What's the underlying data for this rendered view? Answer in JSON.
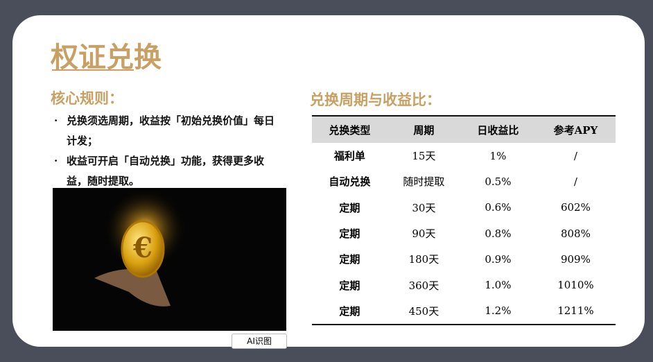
{
  "title": "权证兑换",
  "rules": {
    "heading": "核心规则：",
    "items": [
      "兑换须选周期，收益按「初始兑换价值」每日计发；",
      "收益可开启「自动兑换」功能，获得更多收益，随时提取。"
    ]
  },
  "table": {
    "heading": "兑换周期与收益比：",
    "columns": [
      "兑换类型",
      "周期",
      "日收益比",
      "参考APY"
    ],
    "rows": [
      [
        "福利单",
        "15天",
        "1%",
        "/"
      ],
      [
        "自动兑换",
        "随时提取",
        "0.5%",
        "/"
      ],
      [
        "定期",
        "30天",
        "0.6%",
        "602%"
      ],
      [
        "定期",
        "90天",
        "0.8%",
        "808%"
      ],
      [
        "定期",
        "180天",
        "0.9%",
        "909%"
      ],
      [
        "定期",
        "360天",
        "1.0%",
        "1010%"
      ],
      [
        "定期",
        "450天",
        "1.2%",
        "1211%"
      ]
    ]
  },
  "ai_button": "AI识图"
}
